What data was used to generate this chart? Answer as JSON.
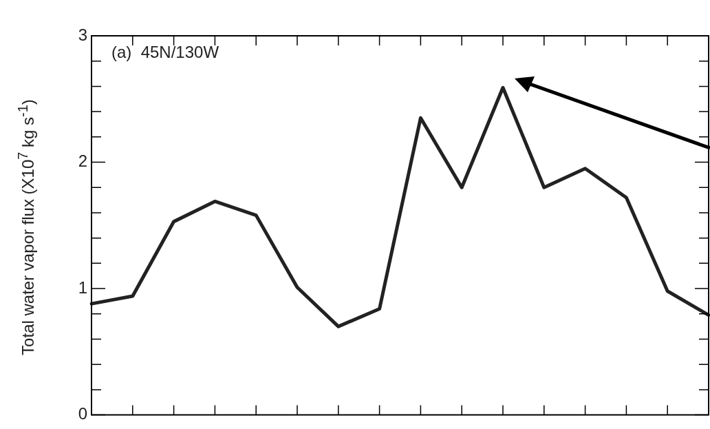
{
  "chart_data": {
    "type": "line",
    "ylabel": "Total water vapor flux (X10$^{7}$ kg s$^{-1}$)",
    "annotations": [
      "(a)  45N/130W"
    ],
    "categories": [
      null,
      null,
      null,
      null,
      null,
      null,
      null,
      null,
      null,
      null,
      null,
      null,
      null,
      null,
      null,
      null
    ],
    "series": [
      {
        "color": "#222222",
        "values": [
          0.88,
          0.94,
          1.53,
          1.69,
          1.58,
          1.01,
          0.7,
          0.84,
          2.35,
          1.8,
          2.59,
          1.8,
          1.95,
          1.72,
          0.98,
          0.79
        ]
      }
    ],
    "ylim": [
      0,
      3
    ],
    "yticks": [
      0,
      {
        "value": 0.2,
        "label": null
      },
      {
        "value": 0.4,
        "label": null
      },
      {
        "value": 0.6,
        "label": null
      },
      {
        "value": 0.8,
        "label": null
      },
      1,
      {
        "value": 1.2,
        "label": null
      },
      {
        "value": 1.4,
        "label": null
      },
      {
        "value": 1.6,
        "label": null
      },
      {
        "value": 1.8,
        "label": null
      },
      2,
      {
        "value": 2.2,
        "label": null
      },
      {
        "value": 2.4,
        "label": null
      },
      {
        "value": 2.6,
        "label": null
      },
      {
        "value": 2.8,
        "label": null
      },
      3
    ],
    "tick_labels": "y",
    "legend": false,
    "marker": "none",
    "line_style": "solid",
    "grid": false
  }
}
